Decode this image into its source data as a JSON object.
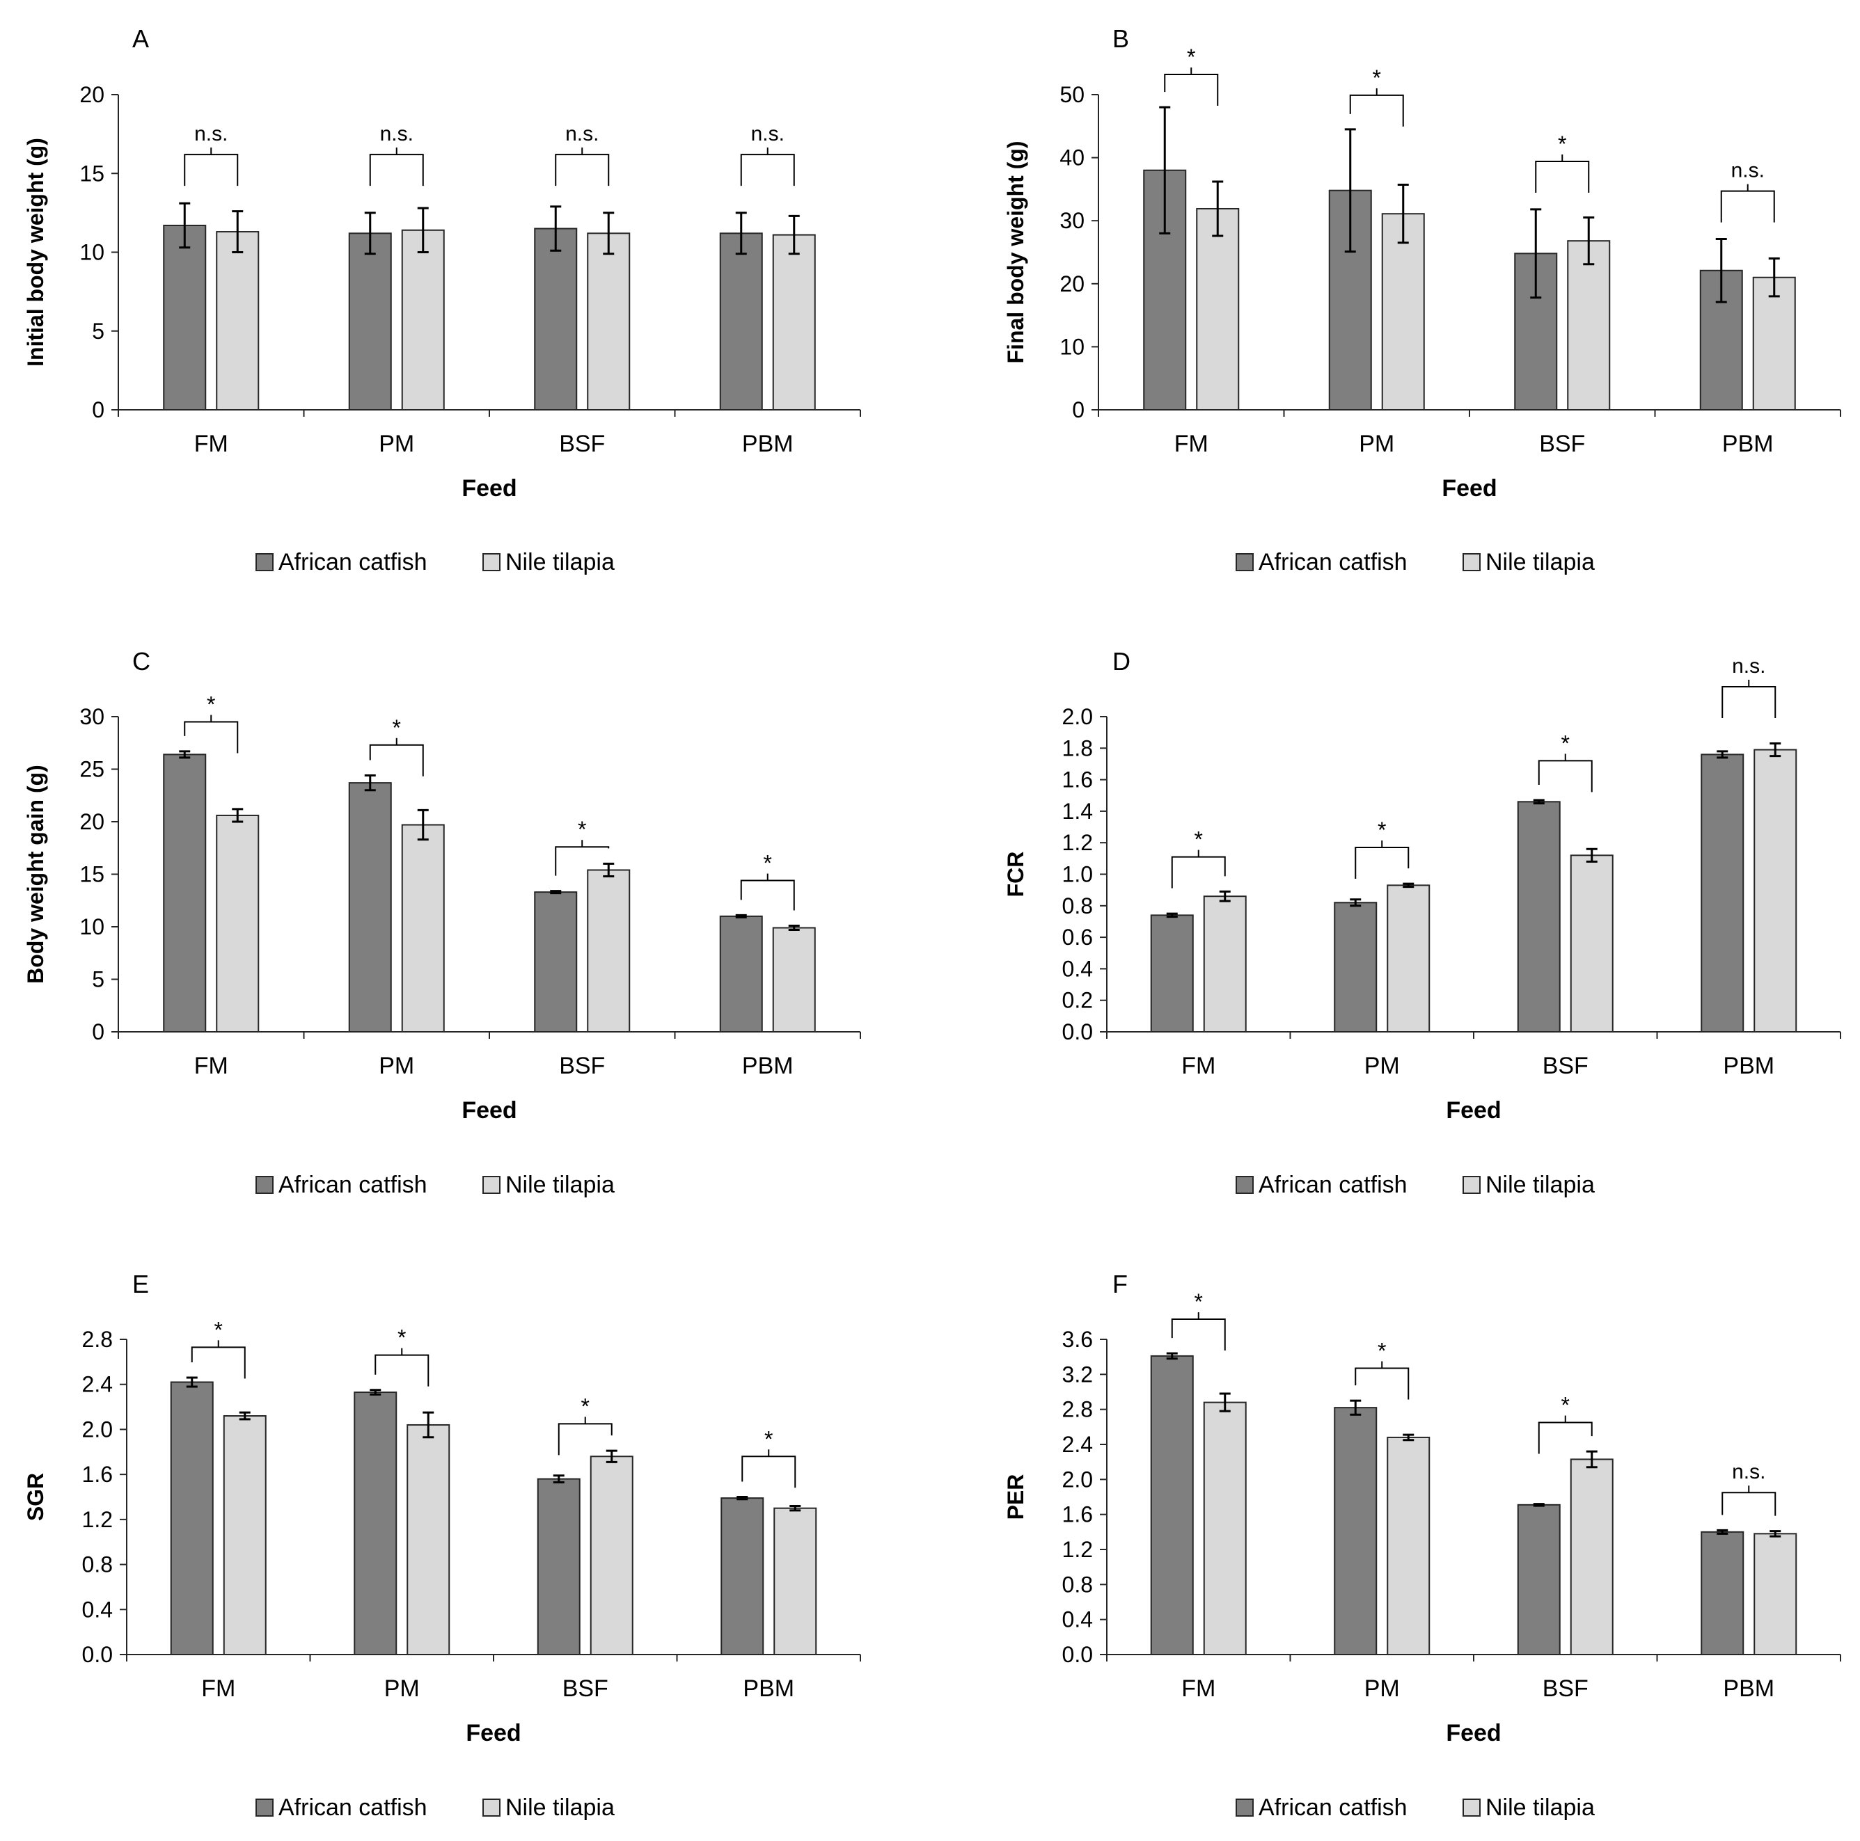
{
  "colors": {
    "african_catfish": "#7f7f7f",
    "nile_tilapia": "#d9d9d9",
    "bar_stroke": "#262626",
    "axis": "#262626"
  },
  "chart_data": [
    {
      "panel": "A",
      "type": "bar",
      "xlabel": "Feed",
      "ylabel": "Initial body weight (g)",
      "ylim": [
        0,
        20
      ],
      "yticks": [
        "0",
        "5",
        "10",
        "15",
        "20"
      ],
      "categories": [
        "FM",
        "PM",
        "BSF",
        "PBM"
      ],
      "series": [
        {
          "name": "African catfish",
          "values": [
            11.7,
            11.2,
            11.5,
            11.2
          ],
          "errors": [
            1.4,
            1.3,
            1.4,
            1.3
          ]
        },
        {
          "name": "Nile tilapia",
          "values": [
            11.3,
            11.4,
            11.2,
            11.1
          ],
          "errors": [
            1.3,
            1.4,
            1.3,
            1.2
          ]
        }
      ],
      "significance": [
        "n.s.",
        "n.s.",
        "n.s.",
        "n.s."
      ],
      "bracket_top": [
        16.2,
        16.2,
        16.2,
        16.2
      ]
    },
    {
      "panel": "B",
      "type": "bar",
      "xlabel": "Feed",
      "ylabel": "Final body weight (g)",
      "ylim": [
        0,
        50
      ],
      "yticks": [
        "0",
        "10",
        "20",
        "30",
        "40",
        "50"
      ],
      "categories": [
        "FM",
        "PM",
        "BSF",
        "PBM"
      ],
      "series": [
        {
          "name": "African catfish",
          "values": [
            38.0,
            34.8,
            24.8,
            22.1
          ],
          "errors": [
            10.0,
            9.7,
            7.0,
            5.0
          ]
        },
        {
          "name": "Nile tilapia",
          "values": [
            31.9,
            31.1,
            26.8,
            21.0
          ],
          "errors": [
            4.3,
            4.6,
            3.7,
            3.0
          ]
        }
      ],
      "significance": [
        "*",
        "*",
        "*",
        "n.s."
      ],
      "bracket_top": [
        53.2,
        49.9,
        39.4,
        34.7
      ]
    },
    {
      "panel": "C",
      "type": "bar",
      "xlabel": "Feed",
      "ylabel": "Body weight gain (g)",
      "ylim": [
        0,
        30
      ],
      "yticks": [
        "0",
        "5",
        "10",
        "15",
        "20",
        "25",
        "30"
      ],
      "categories": [
        "FM",
        "PM",
        "BSF",
        "PBM"
      ],
      "series": [
        {
          "name": "African catfish",
          "values": [
            26.4,
            23.7,
            13.3,
            11.0
          ],
          "errors": [
            0.3,
            0.7,
            0.1,
            0.1
          ]
        },
        {
          "name": "Nile tilapia",
          "values": [
            20.6,
            19.7,
            15.4,
            9.9
          ],
          "errors": [
            0.6,
            1.4,
            0.6,
            0.2
          ]
        }
      ],
      "significance": [
        "*",
        "*",
        "*",
        "*"
      ],
      "bracket_top": [
        29.5,
        27.3,
        17.6,
        14.4
      ]
    },
    {
      "panel": "D",
      "type": "bar",
      "xlabel": "Feed",
      "ylabel": "FCR",
      "ylim": [
        0,
        2.0
      ],
      "yticks": [
        "0.0",
        "0.2",
        "0.4",
        "0.6",
        "0.8",
        "1.0",
        "1.2",
        "1.4",
        "1.6",
        "1.8",
        "2.0"
      ],
      "categories": [
        "FM",
        "PM",
        "BSF",
        "PBM"
      ],
      "series": [
        {
          "name": "African catfish",
          "values": [
            0.74,
            0.82,
            1.46,
            1.76
          ],
          "errors": [
            0.01,
            0.02,
            0.01,
            0.02
          ]
        },
        {
          "name": "Nile tilapia",
          "values": [
            0.86,
            0.93,
            1.12,
            1.79
          ],
          "errors": [
            0.03,
            0.01,
            0.04,
            0.04
          ]
        }
      ],
      "significance": [
        "*",
        "*",
        "*",
        "n.s."
      ],
      "bracket_top": [
        1.11,
        1.17,
        1.72,
        2.19
      ]
    },
    {
      "panel": "E",
      "type": "bar",
      "xlabel": "Feed",
      "ylabel": "SGR",
      "ylim": [
        0,
        2.8
      ],
      "yticks": [
        "0.0",
        "0.4",
        "0.8",
        "1.2",
        "1.6",
        "2.0",
        "2.4",
        "2.8"
      ],
      "categories": [
        "FM",
        "PM",
        "BSF",
        "PBM"
      ],
      "series": [
        {
          "name": "African catfish",
          "values": [
            2.42,
            2.33,
            1.56,
            1.39
          ],
          "errors": [
            0.04,
            0.02,
            0.03,
            0.01
          ]
        },
        {
          "name": "Nile tilapia",
          "values": [
            2.12,
            2.04,
            1.76,
            1.3
          ],
          "errors": [
            0.03,
            0.11,
            0.05,
            0.02
          ]
        }
      ],
      "significance": [
        "*",
        "*",
        "*",
        "*"
      ],
      "bracket_top": [
        2.73,
        2.66,
        2.05,
        1.76
      ]
    },
    {
      "panel": "F",
      "type": "bar",
      "xlabel": "Feed",
      "ylabel": "PER",
      "ylim": [
        0,
        3.6
      ],
      "yticks": [
        "0.0",
        "0.4",
        "0.8",
        "1.2",
        "1.6",
        "2.0",
        "2.4",
        "2.8",
        "3.2",
        "3.6"
      ],
      "categories": [
        "FM",
        "PM",
        "BSF",
        "PBM"
      ],
      "series": [
        {
          "name": "African catfish",
          "values": [
            3.41,
            2.82,
            1.71,
            1.4
          ],
          "errors": [
            0.03,
            0.08,
            0.01,
            0.02
          ]
        },
        {
          "name": "Nile tilapia",
          "values": [
            2.88,
            2.48,
            2.23,
            1.38
          ],
          "errors": [
            0.1,
            0.03,
            0.09,
            0.03
          ]
        }
      ],
      "significance": [
        "*",
        "*",
        "*",
        "n.s."
      ],
      "bracket_top": [
        3.83,
        3.27,
        2.65,
        1.85
      ]
    }
  ]
}
